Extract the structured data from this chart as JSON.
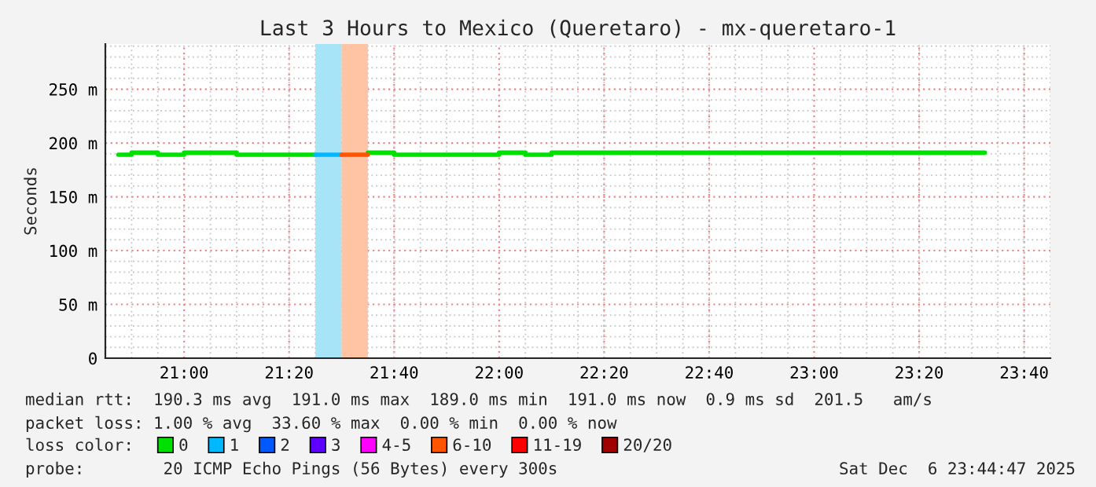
{
  "chart_data": {
    "type": "step",
    "title": "Last 3 Hours to Mexico (Queretaro) - mx-queretaro-1",
    "ylabel": "Seconds",
    "x": [
      20.7917,
      20.875,
      20.9583,
      21.0417,
      21.125,
      21.2083,
      21.2917,
      21.375,
      21.4583,
      21.5417,
      21.625,
      21.7083,
      21.7917,
      21.875,
      21.9583,
      22.0417,
      22.125,
      22.2083,
      22.2917,
      22.375,
      22.4583,
      22.5417,
      22.625,
      22.7083,
      22.7917,
      22.875,
      22.9583,
      23.0417,
      23.125,
      23.2083,
      23.2917,
      23.375,
      23.4583,
      23.5417
    ],
    "series": [
      {
        "name": "0",
        "color": "#00e000",
        "values": [
          189,
          191,
          189,
          191,
          191,
          189,
          189,
          189,
          null,
          null,
          191,
          189,
          189,
          189,
          189,
          191,
          189,
          191,
          191,
          191,
          191,
          191,
          191,
          191,
          191,
          191,
          191,
          191,
          191,
          191,
          191,
          191,
          191,
          191
        ]
      },
      {
        "name": "1",
        "color": "#00b8ff",
        "type": "line",
        "x": [
          21.4167,
          21.5
        ],
        "values": [
          189,
          189
        ]
      },
      {
        "name": "2",
        "color": "#0059ff",
        "values": [
          null,
          null,
          null,
          null,
          null,
          null,
          null,
          null,
          null,
          null,
          null,
          null,
          null,
          null,
          null,
          null,
          null,
          null,
          null,
          null,
          null,
          null,
          null,
          null,
          null,
          null,
          null,
          null,
          null,
          null,
          null,
          null,
          null,
          null
        ]
      },
      {
        "name": "3",
        "color": "#5e00ff",
        "values": [
          null,
          null,
          null,
          null,
          null,
          null,
          null,
          null,
          null,
          null,
          null,
          null,
          null,
          null,
          null,
          null,
          null,
          null,
          null,
          null,
          null,
          null,
          null,
          null,
          null,
          null,
          null,
          null,
          null,
          null,
          null,
          null,
          null,
          null
        ]
      },
      {
        "name": "4-5",
        "color": "#ff00ff",
        "values": [
          null,
          null,
          null,
          null,
          null,
          null,
          null,
          null,
          null,
          null,
          null,
          null,
          null,
          null,
          null,
          null,
          null,
          null,
          null,
          null,
          null,
          null,
          null,
          null,
          null,
          null,
          null,
          null,
          null,
          null,
          null,
          null,
          null,
          null
        ]
      },
      {
        "name": "6-10",
        "color": "#ff5500",
        "type": "line",
        "x": [
          21.5,
          21.5833
        ],
        "values": [
          189,
          189
        ]
      },
      {
        "name": "11-19",
        "color": "#ff0000",
        "values": [
          null,
          null,
          null,
          null,
          null,
          null,
          null,
          null,
          null,
          null,
          null,
          null,
          null,
          null,
          null,
          null,
          null,
          null,
          null,
          null,
          null,
          null,
          null,
          null,
          null,
          null,
          null,
          null,
          null,
          null,
          null,
          null,
          null,
          null
        ]
      },
      {
        "name": "20/20",
        "color": "#a10000",
        "values": [
          null,
          null,
          null,
          null,
          null,
          null,
          null,
          null,
          null,
          null,
          null,
          null,
          null,
          null,
          null,
          null,
          null,
          null,
          null,
          null,
          null,
          null,
          null,
          null,
          null,
          null,
          null,
          null,
          null,
          null,
          null,
          null,
          null,
          null
        ]
      }
    ],
    "legend_title": "loss color:",
    "legend": "bottom",
    "bands": [
      {
        "axis": "x",
        "from": 21.4167,
        "to": 21.5,
        "color": "#a8e4f8"
      },
      {
        "axis": "x",
        "from": 21.5,
        "to": 21.5833,
        "color": "#ffc4a4"
      }
    ],
    "xlim": [
      20.75,
      23.75
    ],
    "xticks": [
      {
        "value": 21,
        "label": "21:00"
      },
      {
        "value": 21.3333,
        "label": "21:20"
      },
      {
        "value": 21.6667,
        "label": "21:40"
      },
      {
        "value": 22,
        "label": "22:00"
      },
      {
        "value": 22.3333,
        "label": "22:20"
      },
      {
        "value": 22.6667,
        "label": "22:40"
      },
      {
        "value": 23,
        "label": "23:00"
      },
      {
        "value": 23.3333,
        "label": "23:20"
      },
      {
        "value": 23.6667,
        "label": "23:40"
      }
    ],
    "ylim": [
      0,
      292
    ],
    "yticks": [
      0,
      {
        "value": 50,
        "label": "50 m"
      },
      {
        "value": 100,
        "label": "100 m"
      },
      {
        "value": 150,
        "label": "150 m"
      },
      {
        "value": 200,
        "label": "200 m"
      },
      {
        "value": 250,
        "label": "250 m"
      }
    ],
    "grid": true,
    "annotations": [
      "median rtt:  190.3 ms avg  191.0 ms max  189.0 ms min  191.0 ms now  0.9 ms sd  201.5   am/s",
      "packet loss: 1.00 % avg  33.60 % max  0.00 % min  0.00 % now",
      "probe:        20 ICMP Echo Pings (56 Bytes) every 300s",
      "Sat Dec  6 23:44:47 2025"
    ]
  }
}
